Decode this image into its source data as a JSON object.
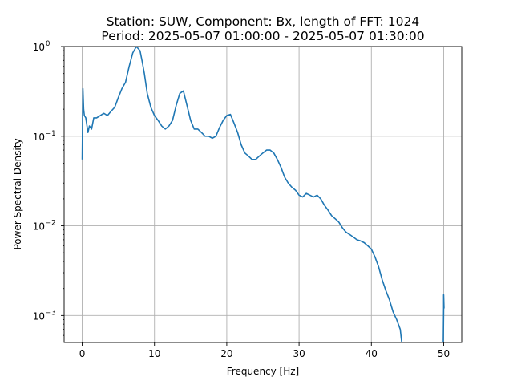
{
  "chart_data": {
    "type": "line",
    "title_line1": "Station: SUW, Component: Bx, length of FFT: 1024",
    "title_line2": "Period: 2025-05-07 01:00:00 - 2025-05-07 01:30:00",
    "xlabel": "Frequency [Hz]",
    "ylabel": "Power Spectral Density",
    "xlim": [
      -2.5,
      52.5
    ],
    "ylim": [
      0.0005,
      1
    ],
    "yscale": "log",
    "grid": true,
    "x_ticks": [
      {
        "value": 0,
        "label": "0"
      },
      {
        "value": 10,
        "label": "10"
      },
      {
        "value": 20,
        "label": "20"
      },
      {
        "value": 30,
        "label": "30"
      },
      {
        "value": 40,
        "label": "40"
      },
      {
        "value": 50,
        "label": "50"
      }
    ],
    "y_ticks": [
      {
        "value": 0.001,
        "base": "10",
        "exp": "−3"
      },
      {
        "value": 0.01,
        "base": "10",
        "exp": "−2"
      },
      {
        "value": 0.1,
        "base": "10",
        "exp": "−1"
      },
      {
        "value": 1,
        "base": "10",
        "exp": "0"
      }
    ],
    "series": [
      {
        "color": "#1f77b4",
        "x": [
          0.0,
          0.1,
          0.2,
          0.3,
          0.5,
          0.8,
          1.0,
          1.3,
          1.6,
          2.0,
          2.5,
          3.0,
          3.5,
          4.0,
          4.5,
          5.0,
          5.5,
          6.0,
          6.5,
          7.0,
          7.5,
          8.0,
          8.3,
          8.6,
          9.0,
          9.5,
          10.0,
          10.5,
          11.0,
          11.5,
          12.0,
          12.5,
          13.0,
          13.5,
          14.0,
          14.5,
          15.0,
          15.5,
          16.0,
          16.5,
          17.0,
          17.5,
          18.0,
          18.5,
          19.0,
          19.5,
          20.0,
          20.5,
          21.0,
          21.5,
          22.0,
          22.5,
          23.0,
          23.5,
          24.0,
          24.5,
          25.0,
          25.5,
          26.0,
          26.5,
          27.0,
          27.5,
          28.0,
          28.5,
          29.0,
          29.5,
          30.0,
          30.5,
          31.0,
          31.5,
          32.0,
          32.5,
          33.0,
          33.5,
          34.0,
          34.5,
          35.0,
          35.5,
          36.0,
          36.5,
          37.0,
          37.5,
          38.0,
          38.5,
          39.0,
          39.5,
          40.0,
          40.5,
          41.0,
          41.5,
          42.0,
          42.5,
          43.0,
          43.5,
          44.0,
          44.2
        ],
        "y": [
          0.055,
          0.34,
          0.2,
          0.17,
          0.16,
          0.11,
          0.13,
          0.12,
          0.16,
          0.16,
          0.17,
          0.18,
          0.17,
          0.19,
          0.21,
          0.27,
          0.34,
          0.4,
          0.6,
          0.85,
          1.0,
          0.9,
          0.68,
          0.5,
          0.3,
          0.21,
          0.17,
          0.15,
          0.13,
          0.12,
          0.13,
          0.15,
          0.22,
          0.3,
          0.32,
          0.22,
          0.15,
          0.12,
          0.12,
          0.11,
          0.1,
          0.1,
          0.095,
          0.1,
          0.125,
          0.15,
          0.17,
          0.175,
          0.14,
          0.11,
          0.08,
          0.065,
          0.06,
          0.055,
          0.055,
          0.06,
          0.065,
          0.07,
          0.07,
          0.065,
          0.055,
          0.045,
          0.035,
          0.03,
          0.027,
          0.025,
          0.022,
          0.021,
          0.023,
          0.022,
          0.021,
          0.022,
          0.02,
          0.017,
          0.015,
          0.013,
          0.012,
          0.011,
          0.0095,
          0.0085,
          0.008,
          0.0075,
          0.007,
          0.0068,
          0.0065,
          0.006,
          0.0055,
          0.0045,
          0.0035,
          0.0025,
          0.0019,
          0.0015,
          0.0011,
          0.0009,
          0.0007,
          0.0005
        ]
      },
      {
        "color": "#1f77b4",
        "x": [
          49.95,
          50.0,
          50.0,
          50.05
        ],
        "y": [
          0.0005,
          0.0012,
          0.0017,
          0.0012
        ]
      }
    ]
  }
}
